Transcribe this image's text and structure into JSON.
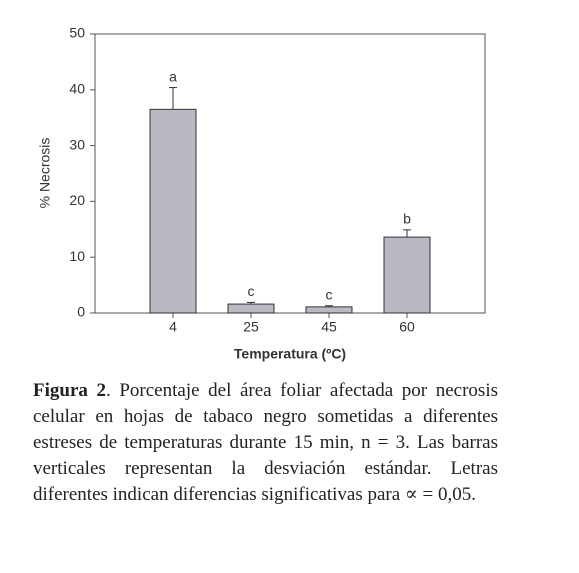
{
  "chart_data": {
    "type": "bar",
    "xlabel": "Temperatura (ºC)",
    "ylabel": "% Necrosis",
    "categories": [
      "4",
      "25",
      "45",
      "60"
    ],
    "values": [
      36.5,
      1.6,
      1.1,
      13.6
    ],
    "errors": [
      3.9,
      0.3,
      0.2,
      1.3
    ],
    "letters": [
      "a",
      "c",
      "c",
      "b"
    ],
    "color": "#b9b9c1",
    "ylim": [
      0,
      50
    ],
    "yticks": [
      0,
      10,
      20,
      30,
      40,
      50
    ]
  },
  "caption": {
    "label": "Figura 2",
    "text": ". Porcentaje del área foliar afectada por necrosis celular en hojas de tabaco negro sometidas a diferentes estreses de temperaturas durante 15 min, n = 3. Las barras verticales representan la desviación estándar. Letras diferentes indican diferencias significativas para ∝ = 0,05."
  }
}
